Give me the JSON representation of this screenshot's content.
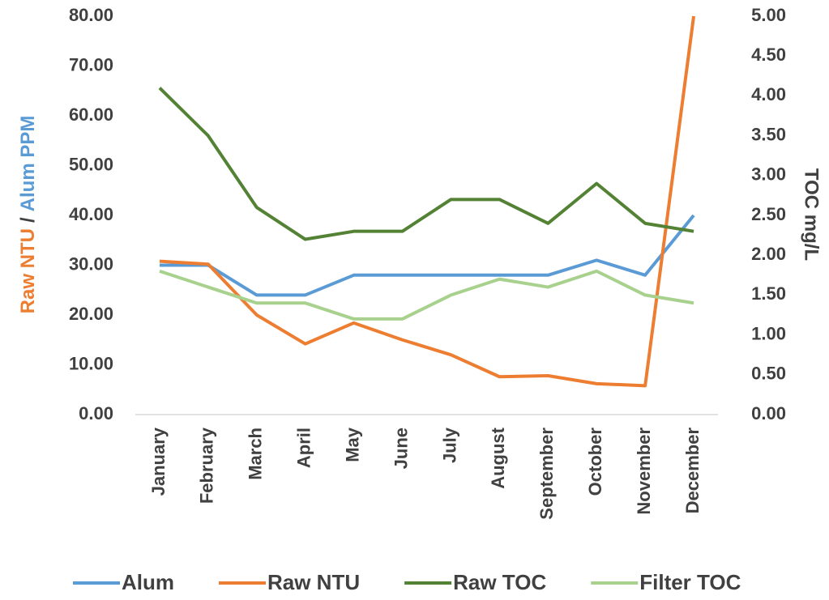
{
  "chart_data": {
    "type": "line",
    "y_label_parts": [
      {
        "text": "Raw NTU",
        "color": "#ed7d31"
      },
      {
        "text": "/",
        "color": "#404040"
      },
      {
        "text": "Alum PPM",
        "color": "#5b9bd5"
      }
    ],
    "y2_label": "TOC mg/L",
    "y2_label_color": "#70ad47",
    "categories": [
      "January",
      "February",
      "March",
      "April",
      "May",
      "June",
      "July",
      "August",
      "September",
      "October",
      "November",
      "December"
    ],
    "series": [
      {
        "name": "Alum",
        "color": "#5b9bd5",
        "values": [
          30,
          30,
          24,
          24,
          28,
          28,
          28,
          28,
          28,
          31,
          28,
          40
        ]
      },
      {
        "name": "Raw NTU",
        "color": "#ed7d31",
        "values": [
          30.8,
          30.2,
          20,
          14.2,
          18.4,
          15,
          12,
          7.6,
          7.8,
          6.2,
          5.8,
          80
        ]
      },
      {
        "name": "Raw TOC",
        "color": "#548235",
        "axis": "y2",
        "values": [
          4.1,
          3.5,
          2.6,
          2.2,
          2.3,
          2.3,
          2.7,
          2.7,
          2.4,
          2.9,
          2.4,
          2.3
        ]
      },
      {
        "name": "Filter TOC",
        "color": "#a9d18e",
        "axis": "y2",
        "values": [
          1.8,
          1.6,
          1.4,
          1.4,
          1.2,
          1.2,
          1.5,
          1.7,
          1.6,
          1.8,
          1.5,
          1.4
        ]
      }
    ],
    "ylim": [
      0,
      80
    ],
    "yticks": [
      {
        "value": 0,
        "label": "0.00"
      },
      {
        "value": 10,
        "label": "10.00"
      },
      {
        "value": 20,
        "label": "20.00"
      },
      {
        "value": 30,
        "label": "30.00"
      },
      {
        "value": 40,
        "label": "40.00"
      },
      {
        "value": 50,
        "label": "50.00"
      },
      {
        "value": 60,
        "label": "60.00"
      },
      {
        "value": 70,
        "label": "70.00"
      },
      {
        "value": 80,
        "label": "80.00"
      }
    ],
    "y2lim": [
      0,
      5
    ],
    "y2ticks": [
      {
        "value": 0,
        "label": "0.00"
      },
      {
        "value": 0.5,
        "label": "0.50"
      },
      {
        "value": 1,
        "label": "1.00"
      },
      {
        "value": 1.5,
        "label": "1.50"
      },
      {
        "value": 2,
        "label": "2.00"
      },
      {
        "value": 2.5,
        "label": "2.50"
      },
      {
        "value": 3,
        "label": "3.00"
      },
      {
        "value": 3.5,
        "label": "3.50"
      },
      {
        "value": 4,
        "label": "4.00"
      },
      {
        "value": 4.5,
        "label": "4.50"
      },
      {
        "value": 5,
        "label": "5.00"
      }
    ],
    "grid": false,
    "legend": "bottom"
  }
}
